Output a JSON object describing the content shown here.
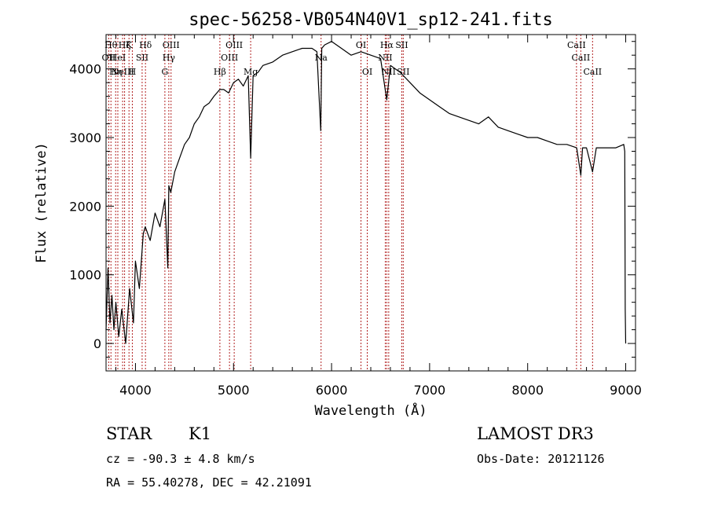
{
  "chart_data": {
    "type": "line",
    "title": "spec-56258-VB054N40V1_sp12-241.fits",
    "xlabel": "Wavelength (Å)",
    "ylabel": "Flux (relative)",
    "xlim": [
      3700,
      9100
    ],
    "ylim": [
      -400,
      4500
    ],
    "x_ticks": [
      4000,
      5000,
      6000,
      7000,
      8000,
      9000
    ],
    "x_tick_labels": [
      "4000",
      "5000",
      "6000",
      "7000",
      "8000",
      "9000"
    ],
    "y_ticks": [
      0,
      1000,
      2000,
      3000,
      4000
    ],
    "y_tick_labels": [
      "0",
      "1000",
      "2000",
      "3000",
      "4000"
    ],
    "x_minor_step": 200,
    "y_minor_step": 200,
    "series": [
      {
        "name": "spectrum",
        "color": "#000000",
        "x": [
          3700,
          3720,
          3740,
          3760,
          3780,
          3800,
          3830,
          3860,
          3900,
          3940,
          3980,
          4000,
          4040,
          4080,
          4100,
          4150,
          4200,
          4250,
          4300,
          4330,
          4340,
          4360,
          4400,
          4450,
          4500,
          4550,
          4600,
          4650,
          4700,
          4750,
          4800,
          4860,
          4900,
          4950,
          5000,
          5050,
          5100,
          5150,
          5175,
          5200,
          5250,
          5300,
          5400,
          5500,
          5600,
          5700,
          5800,
          5850,
          5890,
          5900,
          5930,
          6000,
          6100,
          6200,
          6300,
          6400,
          6500,
          6563,
          6600,
          6700,
          6800,
          6900,
          7000,
          7100,
          7200,
          7300,
          7400,
          7500,
          7600,
          7700,
          7800,
          7900,
          8000,
          8100,
          8200,
          8300,
          8400,
          8500,
          8542,
          8560,
          8600,
          8662,
          8700,
          8800,
          8900,
          8980,
          8990,
          8995,
          9000
        ],
        "y": [
          200,
          1100,
          300,
          700,
          200,
          600,
          100,
          500,
          0,
          800,
          300,
          1200,
          800,
          1600,
          1700,
          1500,
          1900,
          1700,
          2100,
          1100,
          2300,
          2200,
          2500,
          2700,
          2900,
          3000,
          3200,
          3300,
          3450,
          3500,
          3600,
          3700,
          3700,
          3650,
          3800,
          3850,
          3750,
          3900,
          2700,
          3900,
          3950,
          4050,
          4100,
          4200,
          4250,
          4300,
          4300,
          4250,
          3100,
          4300,
          4350,
          4400,
          4300,
          4200,
          4250,
          4200,
          4150,
          3550,
          4050,
          3950,
          3800,
          3650,
          3550,
          3450,
          3350,
          3300,
          3250,
          3200,
          3300,
          3150,
          3100,
          3050,
          3000,
          3000,
          2950,
          2900,
          2900,
          2850,
          2450,
          2850,
          2850,
          2500,
          2850,
          2850,
          2850,
          2900,
          2800,
          500,
          0
        ]
      }
    ],
    "emission_lines": [
      {
        "wl": 3727,
        "name": "OII",
        "row": 2
      },
      {
        "wl": 3750,
        "name": "Hθ",
        "row": 1
      },
      {
        "wl": 3798,
        "name": "Hη",
        "row": 3
      },
      {
        "wl": 3820,
        "name": "HeI",
        "row": 2
      },
      {
        "wl": 3869,
        "name": "NeIII",
        "row": 3
      },
      {
        "wl": 3889,
        "name": "Hζ",
        "row": 1
      },
      {
        "wl": 3934,
        "name": "K",
        "row": 1
      },
      {
        "wl": 3968,
        "name": "H",
        "row": 3
      },
      {
        "wl": 4068,
        "name": "SII",
        "row": 2
      },
      {
        "wl": 4102,
        "name": "Hδ",
        "row": 1
      },
      {
        "wl": 4300,
        "name": "G",
        "row": 3
      },
      {
        "wl": 4340,
        "name": "Hγ",
        "row": 2
      },
      {
        "wl": 4363,
        "name": "OIII",
        "row": 1
      },
      {
        "wl": 4861,
        "name": "Hβ",
        "row": 3
      },
      {
        "wl": 4959,
        "name": "OIII",
        "row": 2
      },
      {
        "wl": 5007,
        "name": "OIII",
        "row": 1
      },
      {
        "wl": 5175,
        "name": "Mg",
        "row": 3
      },
      {
        "wl": 5893,
        "name": "Na",
        "row": 2
      },
      {
        "wl": 6300,
        "name": "OI",
        "row": 1
      },
      {
        "wl": 6364,
        "name": "OI",
        "row": 3
      },
      {
        "wl": 6548,
        "name": "NII",
        "row": 2
      },
      {
        "wl": 6563,
        "name": "Hα",
        "row": 1
      },
      {
        "wl": 6583,
        "name": "NII",
        "row": 3
      },
      {
        "wl": 6716,
        "name": "SII",
        "row": 1
      },
      {
        "wl": 6731,
        "name": "SII",
        "row": 3
      },
      {
        "wl": 8498,
        "name": "CaII",
        "row": 1
      },
      {
        "wl": 8542,
        "name": "CaII",
        "row": 2
      },
      {
        "wl": 8662,
        "name": "CaII",
        "row": 3
      }
    ],
    "line_color": "#b22222",
    "grid": false,
    "legend": "none"
  },
  "info": {
    "class": "STAR",
    "subclass": "K1",
    "survey": "LAMOST DR3",
    "cz": "cz = -90.3 ± 4.8 km/s",
    "obs_date": "Obs-Date: 20121126",
    "coords": "RA =  55.40278, DEC =  42.21091"
  }
}
